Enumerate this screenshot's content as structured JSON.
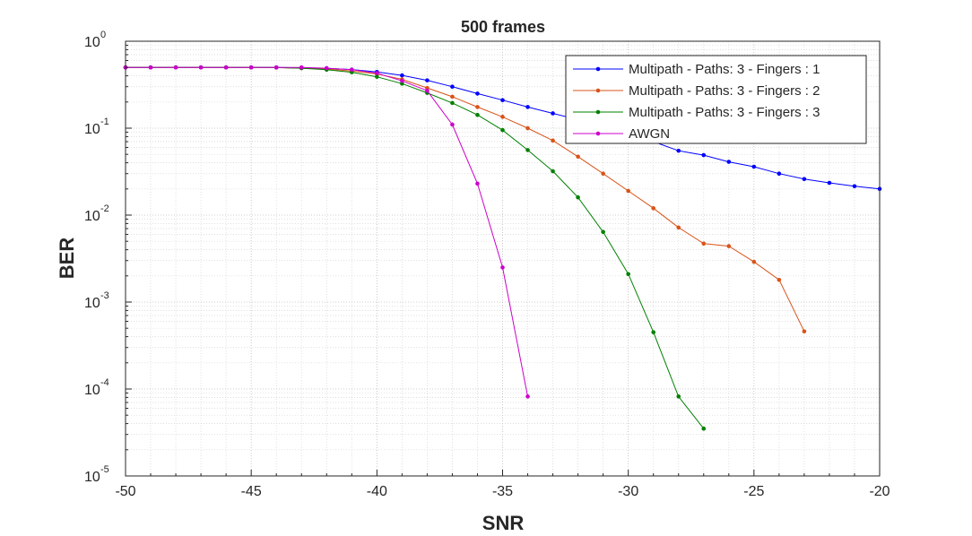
{
  "chart_data": {
    "type": "line",
    "title": "500 frames",
    "xlabel": "SNR",
    "ylabel": "BER",
    "xlim": [
      -50,
      -20
    ],
    "ylim": [
      1e-05,
      1
    ],
    "yscale": "log",
    "grid": "major and minor, dotted",
    "legend_placement": "top-right",
    "x_ticks": [
      "-50",
      "-45",
      "-40",
      "-35",
      "-30",
      "-25",
      "-20"
    ],
    "x_tick_values": [
      -50,
      -45,
      -40,
      -35,
      -30,
      -25,
      -20
    ],
    "y_ticks": [
      {
        "base": "10",
        "exp": "0"
      },
      {
        "base": "10",
        "exp": "-1"
      },
      {
        "base": "10",
        "exp": "-2"
      },
      {
        "base": "10",
        "exp": "-3"
      },
      {
        "base": "10",
        "exp": "-4"
      },
      {
        "base": "10",
        "exp": "-5"
      }
    ],
    "y_tick_values": [
      1,
      0.1,
      0.01,
      0.001,
      0.0001,
      1e-05
    ],
    "series": [
      {
        "name": "Multipath - Paths: 3 - Fingers : 1",
        "color": "#0000ff",
        "x": [
          -50,
          -49,
          -48,
          -47,
          -46,
          -45,
          -44,
          -43,
          -42,
          -41,
          -40,
          -39,
          -38,
          -37,
          -36,
          -35,
          -34,
          -33,
          -32,
          -31,
          -30,
          -29,
          -28,
          -27,
          -26,
          -25,
          -24,
          -23,
          -22,
          -21,
          -20
        ],
        "y": [
          0.5,
          0.5,
          0.5,
          0.5,
          0.5,
          0.5,
          0.5,
          0.495,
          0.488,
          0.472,
          0.443,
          0.405,
          0.355,
          0.3,
          0.25,
          0.21,
          0.175,
          0.148,
          0.125,
          0.104,
          0.087,
          0.07,
          0.055,
          0.049,
          0.041,
          0.036,
          0.03,
          0.026,
          0.0235,
          0.0215,
          0.02
        ]
      },
      {
        "name": "Multipath - Paths: 3 - Fingers : 2",
        "color": "#d95319",
        "x": [
          -50,
          -49,
          -48,
          -47,
          -46,
          -45,
          -44,
          -43,
          -42,
          -41,
          -40,
          -39,
          -38,
          -37,
          -36,
          -35,
          -34,
          -33,
          -32,
          -31,
          -30,
          -29,
          -28,
          -27,
          -26,
          -25,
          -24,
          -23
        ],
        "y": [
          0.5,
          0.5,
          0.5,
          0.5,
          0.5,
          0.5,
          0.498,
          0.49,
          0.478,
          0.455,
          0.42,
          0.365,
          0.29,
          0.23,
          0.175,
          0.135,
          0.1,
          0.072,
          0.047,
          0.03,
          0.019,
          0.012,
          0.0072,
          0.0047,
          0.0044,
          0.0029,
          0.0018,
          0.00046
        ]
      },
      {
        "name": "Multipath - Paths: 3 - Fingers : 3",
        "color": "#008000",
        "x": [
          -50,
          -49,
          -48,
          -47,
          -46,
          -45,
          -44,
          -43,
          -42,
          -41,
          -40,
          -39,
          -38,
          -37,
          -36,
          -35,
          -34,
          -33,
          -32,
          -31,
          -30,
          -29,
          -28,
          -27
        ],
        "y": [
          0.5,
          0.5,
          0.5,
          0.5,
          0.5,
          0.5,
          0.498,
          0.49,
          0.47,
          0.44,
          0.39,
          0.325,
          0.255,
          0.195,
          0.142,
          0.095,
          0.056,
          0.032,
          0.016,
          0.0064,
          0.0021,
          0.00045,
          8.2e-05,
          3.5e-05
        ]
      },
      {
        "name": "AWGN",
        "color": "#cc00cc",
        "x": [
          -50,
          -49,
          -48,
          -47,
          -46,
          -45,
          -44,
          -43,
          -42,
          -41,
          -40,
          -39,
          -38,
          -37,
          -36,
          -35,
          -34
        ],
        "y": [
          0.5,
          0.5,
          0.5,
          0.5,
          0.5,
          0.5,
          0.5,
          0.5,
          0.49,
          0.47,
          0.43,
          0.35,
          0.27,
          0.11,
          0.023,
          0.0025,
          8.2e-05
        ]
      }
    ]
  }
}
